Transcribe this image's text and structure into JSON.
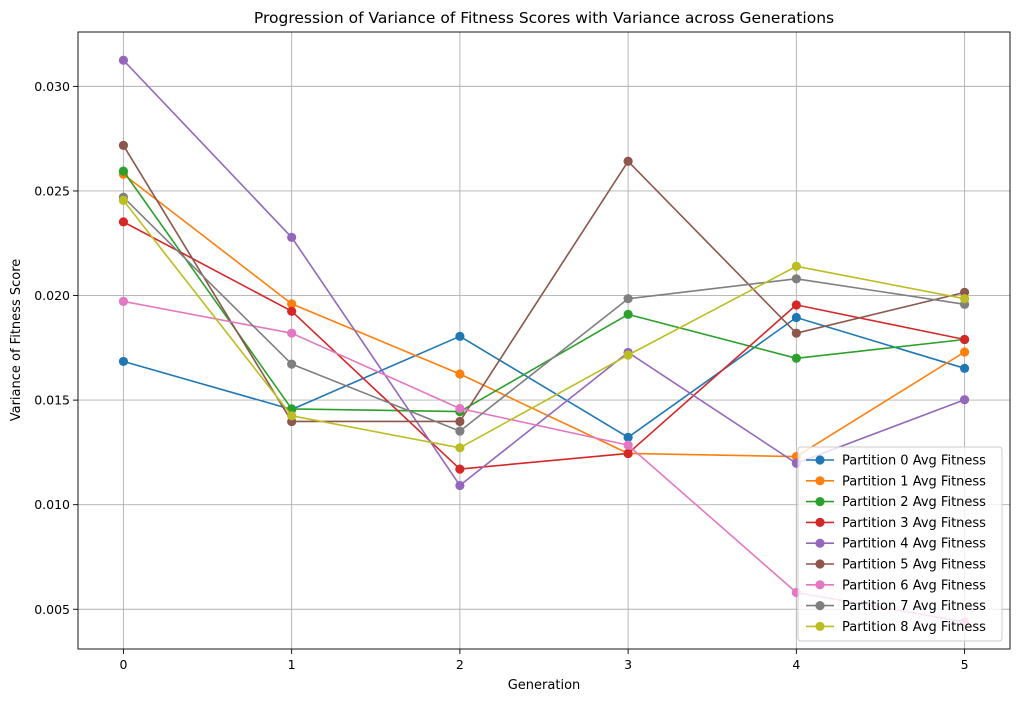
{
  "chart_data": {
    "type": "line",
    "title": "Progression of Variance of Fitness Scores with Variance across Generations",
    "xlabel": "Generation",
    "ylabel": "Variance of Fitness Score",
    "x": [
      0,
      1,
      2,
      3,
      4,
      5
    ],
    "xticks": [
      "0",
      "1",
      "2",
      "3",
      "4",
      "5"
    ],
    "yticks": [
      "0.005",
      "0.010",
      "0.015",
      "0.020",
      "0.025",
      "0.030"
    ],
    "xlim": [
      -0.27,
      5.27
    ],
    "ylim": [
      0.0031,
      0.0326
    ],
    "grid": true,
    "legend_position": "lower-right",
    "series": [
      {
        "name": "Partition 0 Avg Fitness",
        "color": "#1f77b4",
        "values": [
          0.01685,
          0.01455,
          0.01805,
          0.01322,
          0.01895,
          0.01652
        ]
      },
      {
        "name": "Partition 1 Avg Fitness",
        "color": "#ff7f0e",
        "values": [
          0.0258,
          0.0196,
          0.01625,
          0.01245,
          0.0123,
          0.0173
        ]
      },
      {
        "name": "Partition 2 Avg Fitness",
        "color": "#2ca02c",
        "values": [
          0.02595,
          0.01458,
          0.01445,
          0.0191,
          0.017,
          0.0179
        ]
      },
      {
        "name": "Partition 3 Avg Fitness",
        "color": "#d62728",
        "values": [
          0.02352,
          0.01925,
          0.0117,
          0.01245,
          0.01955,
          0.0179
        ]
      },
      {
        "name": "Partition 4 Avg Fitness",
        "color": "#9467bd",
        "values": [
          0.03125,
          0.02278,
          0.01092,
          0.01728,
          0.01198,
          0.01502
        ]
      },
      {
        "name": "Partition 5 Avg Fitness",
        "color": "#8c564b",
        "values": [
          0.02718,
          0.01398,
          0.01398,
          0.02642,
          0.0182,
          0.02015
        ]
      },
      {
        "name": "Partition 6 Avg Fitness",
        "color": "#e377c2",
        "values": [
          0.01972,
          0.0182,
          0.0146,
          0.01285,
          0.0058,
          0.0044
        ]
      },
      {
        "name": "Partition 7 Avg Fitness",
        "color": "#7f7f7f",
        "values": [
          0.0247,
          0.01672,
          0.01352,
          0.01985,
          0.0208,
          0.01958
        ]
      },
      {
        "name": "Partition 8 Avg Fitness",
        "color": "#bcbd22",
        "values": [
          0.02455,
          0.01425,
          0.01272,
          0.01715,
          0.0214,
          0.01985
        ]
      }
    ]
  }
}
